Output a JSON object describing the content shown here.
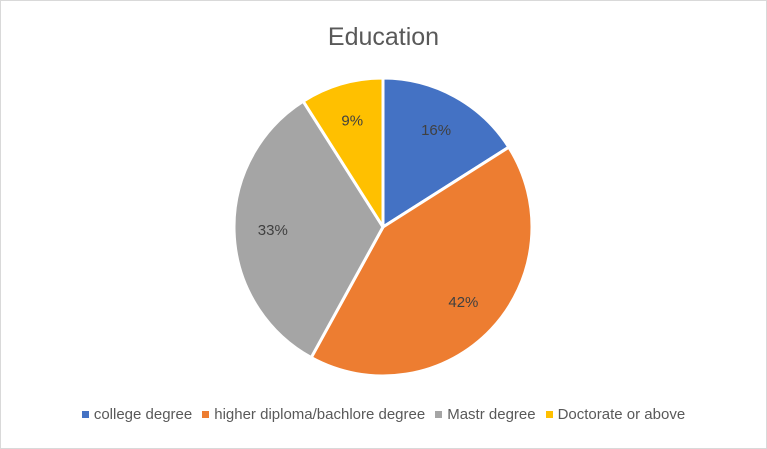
{
  "chart_data": {
    "type": "pie",
    "title": "Education",
    "categories": [
      "college degree",
      "higher diploma/bachlore degree",
      "Mastr degree",
      "Doctorate or above"
    ],
    "values": [
      16,
      42,
      33,
      9
    ],
    "data_labels": [
      "16%",
      "42%",
      "33%",
      "9%"
    ],
    "colors": [
      "#4472C4",
      "#ED7D31",
      "#A5A5A5",
      "#FFC000"
    ],
    "legend_position": "bottom"
  }
}
